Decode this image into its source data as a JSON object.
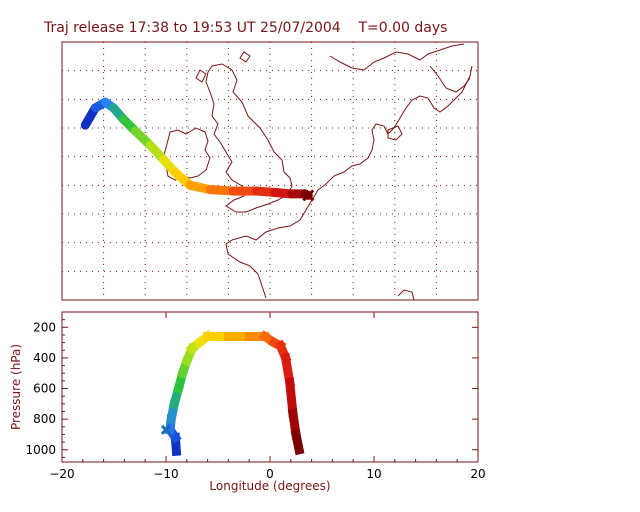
{
  "title": "Traj release 17:38 to 19:53 UT 25/07/2004    T=0.00 days",
  "chart_data": [
    {
      "type": "map",
      "title": "Traj release 17:38 to 19:53 UT 25/07/2004    T=0.00 days",
      "xlim": [
        -12,
        13
      ],
      "ylim": [
        45,
        63
      ],
      "grid": true,
      "series": [
        {
          "name": "",
          "lon": [
            -10.6,
            -10.0,
            -9.4,
            -8.9,
            -8.3,
            -7.6,
            -6.7,
            -5.9,
            -5.2,
            -4.3,
            -3.1,
            -1.7,
            -0.3,
            0.8,
            1.8,
            2.6,
            2.8
          ],
          "lat": [
            57.2,
            58.4,
            58.8,
            58.4,
            57.6,
            56.8,
            55.8,
            54.8,
            53.9,
            53.0,
            52.7,
            52.6,
            52.6,
            52.5,
            52.4,
            52.4,
            52.3
          ],
          "color_scale": [
            "#1030c0",
            "#2a80ff",
            "#20c040",
            "#a0e020",
            "#ffe000",
            "#ff9000",
            "#f04010",
            "#d01010",
            "#7a0000"
          ]
        }
      ],
      "markers": [
        {
          "symbol": "x",
          "lon": 2.8,
          "lat": 52.3,
          "color": "#7a0000"
        }
      ]
    },
    {
      "type": "line",
      "xlabel": "Longitude  (degrees)",
      "ylabel": "Pressure  (hPa)",
      "xlim": [
        -20,
        20
      ],
      "ylim": [
        1080,
        100
      ],
      "xticks": [
        "-20",
        "-10",
        "0",
        "10",
        "20"
      ],
      "yticks": [
        "200",
        "400",
        "600",
        "800",
        "1000"
      ],
      "x": [
        -9.0,
        -9.1,
        -9.6,
        -9.5,
        -9.2,
        -8.8,
        -8.4,
        -8.0,
        -7.5,
        -6.8,
        -6.0,
        -4.0,
        -2.0,
        -0.5,
        0.4,
        1.0,
        1.5,
        1.9,
        2.2,
        2.5,
        2.8
      ],
      "y": [
        1010,
        920,
        870,
        800,
        700,
        600,
        500,
        420,
        340,
        300,
        260,
        260,
        260,
        260,
        300,
        320,
        400,
        560,
        760,
        900,
        1000
      ],
      "color_scale": [
        "#1030c0",
        "#2a80ff",
        "#20c040",
        "#a0e020",
        "#ffe000",
        "#ff9000",
        "#f04010",
        "#d01010",
        "#7a0000"
      ],
      "markers": [
        {
          "symbol": "x",
          "x": -10.0,
          "y": 870,
          "color": "#1a6ab0"
        }
      ]
    }
  ],
  "style": {
    "axis_color": "#7a1414",
    "coast_color": "#7a1414",
    "grid_color": "#7a1414"
  }
}
